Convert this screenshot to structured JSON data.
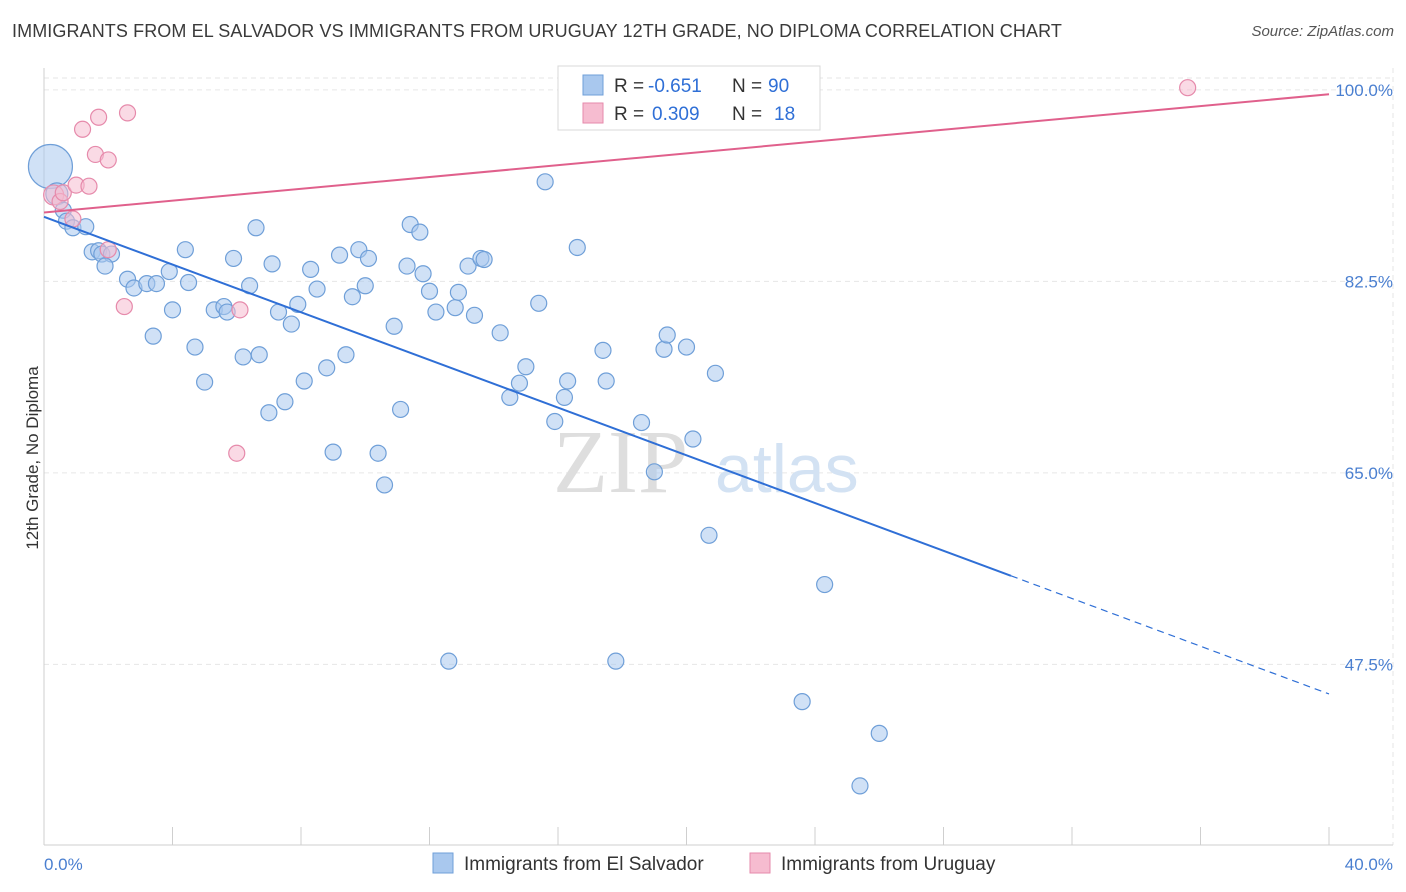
{
  "title": "IMMIGRANTS FROM EL SALVADOR VS IMMIGRANTS FROM URUGUAY 12TH GRADE, NO DIPLOMA CORRELATION CHART",
  "source": "Source: ZipAtlas.com",
  "watermark": {
    "zip": "ZIP",
    "atlas": "atlas"
  },
  "colors": {
    "blue_fill": "#a9c8ee",
    "blue_stroke": "#6f9fd8",
    "blue_line": "#2f6fd6",
    "pink_fill": "#f6bcd0",
    "pink_stroke": "#e68aab",
    "pink_line": "#e0608c",
    "grid": "#e6e6e6",
    "axis_text": "#4a7fd0"
  },
  "legend": {
    "rows": [
      {
        "r_label": "R = ",
        "r_value": "-0.651",
        "n_label": "N = ",
        "n_value": "90"
      },
      {
        "r_label": "R = ",
        "r_value": "0.309",
        "n_label": "N = ",
        "n_value": "18"
      }
    ]
  },
  "chart_data": {
    "type": "scatter",
    "xlabel": "",
    "ylabel": "12th Grade, No Diploma",
    "xlim": [
      0,
      40
    ],
    "ylim": [
      31,
      102
    ],
    "x_tick_labels": [
      {
        "value": 0,
        "label": "0.0%"
      },
      {
        "value": 40,
        "label": "40.0%"
      }
    ],
    "y_tick_labels": [
      {
        "value": 100,
        "label": "100.0%"
      },
      {
        "value": 82.5,
        "label": "82.5%"
      },
      {
        "value": 65,
        "label": "65.0%"
      },
      {
        "value": 47.5,
        "label": "47.5%"
      }
    ],
    "legend_position": "top-center",
    "grid": true,
    "series": [
      {
        "name": "Immigrants from El Salvador",
        "color": "#a9c8ee",
        "trend": {
          "x0": 0,
          "y0": 88.4,
          "x1": 30.1,
          "y1": 55.6,
          "dashed_to_x": 40,
          "dashed_to_y": 44.8
        },
        "points": [
          [
            0.2,
            93,
            22
          ],
          [
            0.4,
            90.5,
            11
          ],
          [
            0.6,
            89,
            8
          ],
          [
            0.7,
            88,
            8
          ],
          [
            0.9,
            87.4,
            8
          ],
          [
            1.3,
            87.5,
            8
          ],
          [
            1.5,
            85.2,
            8
          ],
          [
            1.7,
            85.3,
            8
          ],
          [
            1.8,
            85,
            8
          ],
          [
            2.1,
            85,
            8
          ],
          [
            1.9,
            83.9,
            8
          ],
          [
            2.6,
            82.7,
            8
          ],
          [
            2.8,
            81.9,
            8
          ],
          [
            3.2,
            82.3,
            8
          ],
          [
            3.5,
            82.3,
            8
          ],
          [
            3.9,
            83.4,
            8
          ],
          [
            4.4,
            85.4,
            8
          ],
          [
            4.5,
            82.4,
            8
          ],
          [
            4.0,
            79.9,
            8
          ],
          [
            3.4,
            77.5,
            8
          ],
          [
            4.7,
            76.5,
            8
          ],
          [
            5.0,
            73.3,
            8
          ],
          [
            5.3,
            79.9,
            8
          ],
          [
            5.6,
            80.2,
            8
          ],
          [
            5.7,
            79.7,
            8
          ],
          [
            5.9,
            84.6,
            8
          ],
          [
            6.2,
            75.6,
            8
          ],
          [
            6.4,
            82.1,
            8
          ],
          [
            6.6,
            87.4,
            8
          ],
          [
            6.7,
            75.8,
            8
          ],
          [
            7.0,
            70.5,
            8
          ],
          [
            7.1,
            84.1,
            8
          ],
          [
            7.3,
            79.7,
            8
          ],
          [
            7.5,
            71.5,
            8
          ],
          [
            7.7,
            78.6,
            8
          ],
          [
            7.9,
            80.4,
            8
          ],
          [
            8.1,
            73.4,
            8
          ],
          [
            8.3,
            83.6,
            8
          ],
          [
            8.5,
            81.8,
            8
          ],
          [
            8.8,
            74.6,
            8
          ],
          [
            9.0,
            66.9,
            8
          ],
          [
            9.2,
            84.9,
            8
          ],
          [
            9.4,
            75.8,
            8
          ],
          [
            9.6,
            81.1,
            8
          ],
          [
            9.8,
            85.4,
            8
          ],
          [
            10.0,
            82.1,
            8
          ],
          [
            10.1,
            84.6,
            8
          ],
          [
            10.4,
            66.8,
            8
          ],
          [
            10.6,
            63.9,
            8
          ],
          [
            10.9,
            78.4,
            8
          ],
          [
            11.1,
            70.8,
            8
          ],
          [
            11.3,
            83.9,
            8
          ],
          [
            11.4,
            87.7,
            8
          ],
          [
            11.7,
            87,
            8
          ],
          [
            11.8,
            83.2,
            8
          ],
          [
            12.0,
            81.6,
            8
          ],
          [
            12.2,
            79.7,
            8
          ],
          [
            12.6,
            47.8,
            8
          ],
          [
            12.8,
            80.1,
            8
          ],
          [
            12.9,
            81.5,
            8
          ],
          [
            13.2,
            83.9,
            8
          ],
          [
            13.4,
            79.4,
            8
          ],
          [
            13.6,
            84.6,
            8
          ],
          [
            13.7,
            84.5,
            8
          ],
          [
            14.2,
            77.8,
            8
          ],
          [
            14.5,
            71.9,
            8
          ],
          [
            14.8,
            73.2,
            8
          ],
          [
            15.0,
            74.7,
            8
          ],
          [
            15.4,
            80.5,
            8
          ],
          [
            15.6,
            91.6,
            8
          ],
          [
            15.9,
            69.7,
            8
          ],
          [
            16.2,
            71.9,
            8
          ],
          [
            16.3,
            73.4,
            8
          ],
          [
            16.6,
            85.6,
            8
          ],
          [
            17.4,
            76.2,
            8
          ],
          [
            17.5,
            73.4,
            8
          ],
          [
            17.8,
            47.8,
            8
          ],
          [
            18.6,
            69.6,
            8
          ],
          [
            19.0,
            65.1,
            8
          ],
          [
            19.3,
            76.3,
            8
          ],
          [
            19.4,
            77.6,
            8
          ],
          [
            20.0,
            76.5,
            8
          ],
          [
            20.2,
            68.1,
            8
          ],
          [
            20.7,
            59.3,
            8
          ],
          [
            20.9,
            74.1,
            8
          ],
          [
            23.6,
            44.1,
            8
          ],
          [
            24.3,
            54.8,
            8
          ],
          [
            25.4,
            36.4,
            8
          ],
          [
            26.0,
            41.2,
            8
          ],
          [
            30.1,
            55.6,
            0
          ]
        ]
      },
      {
        "name": "Immigrants from Uruguay",
        "color": "#f6bcd0",
        "trend": {
          "x0": 0,
          "y0": 88.8,
          "x1": 40,
          "y1": 99.6
        },
        "points": [
          [
            0.3,
            90.4,
            10
          ],
          [
            0.5,
            89.8,
            8
          ],
          [
            0.6,
            90.6,
            8
          ],
          [
            0.9,
            88.2,
            8
          ],
          [
            1.0,
            91.3,
            8
          ],
          [
            1.2,
            96.4,
            8
          ],
          [
            1.4,
            91.2,
            8
          ],
          [
            1.6,
            94.1,
            8
          ],
          [
            1.7,
            97.5,
            8
          ],
          [
            2.0,
            93.6,
            8
          ],
          [
            2.0,
            85.4,
            8
          ],
          [
            2.5,
            80.2,
            8
          ],
          [
            2.6,
            97.9,
            8
          ],
          [
            6.0,
            66.8,
            8
          ],
          [
            6.1,
            79.9,
            8
          ],
          [
            23.7,
            100.2,
            8
          ],
          [
            35.6,
            100.2,
            8
          ],
          [
            1.8,
            84.8,
            0
          ]
        ]
      }
    ]
  }
}
